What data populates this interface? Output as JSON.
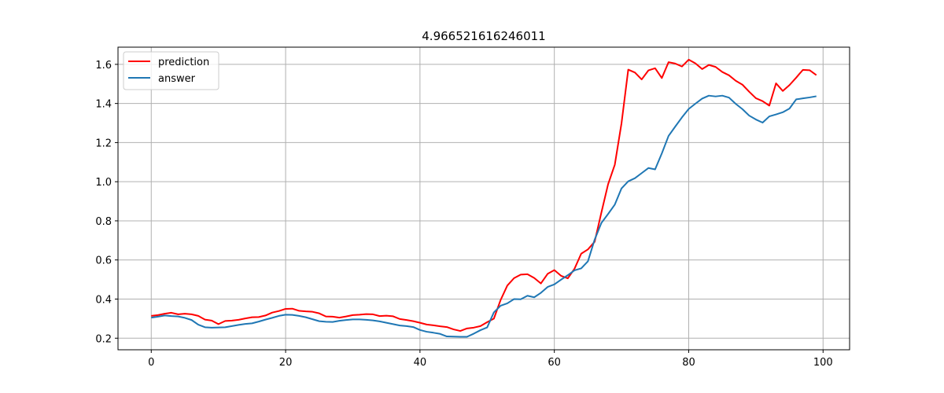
{
  "chart_data": {
    "type": "line",
    "title": "4.966521616246011",
    "xlabel": "",
    "ylabel": "",
    "xlim": [
      -4.95,
      103.95
    ],
    "ylim": [
      0.1408,
      1.6879
    ],
    "xticks": [
      0,
      20,
      40,
      60,
      80,
      100
    ],
    "yticks": [
      0.2,
      0.4,
      0.6,
      0.8,
      1.0,
      1.2,
      1.4,
      1.6
    ],
    "xtick_labels": [
      "0",
      "20",
      "40",
      "60",
      "80",
      "100"
    ],
    "ytick_labels": [
      "0.2",
      "0.4",
      "0.6",
      "0.8",
      "1.0",
      "1.2",
      "1.4",
      "1.6"
    ],
    "grid": true,
    "legend_position": "top-left",
    "x": [
      0,
      1,
      2,
      3,
      4,
      5,
      6,
      7,
      8,
      9,
      10,
      11,
      12,
      13,
      14,
      15,
      16,
      17,
      18,
      19,
      20,
      21,
      22,
      23,
      24,
      25,
      26,
      27,
      28,
      29,
      30,
      31,
      32,
      33,
      34,
      35,
      36,
      37,
      38,
      39,
      40,
      41,
      42,
      43,
      44,
      45,
      46,
      47,
      48,
      49,
      50,
      51,
      52,
      53,
      54,
      55,
      56,
      57,
      58,
      59,
      60,
      61,
      62,
      63,
      64,
      65,
      66,
      67,
      68,
      69,
      70,
      71,
      72,
      73,
      74,
      75,
      76,
      77,
      78,
      79,
      80,
      81,
      82,
      83,
      84,
      85,
      86,
      87,
      88,
      89,
      90,
      91,
      92,
      93,
      94,
      95,
      96,
      97,
      98,
      99
    ],
    "series": [
      {
        "name": "prediction",
        "color": "#ff0000",
        "values": [
          0.314,
          0.318,
          0.325,
          0.33,
          0.322,
          0.325,
          0.322,
          0.314,
          0.295,
          0.29,
          0.272,
          0.288,
          0.29,
          0.294,
          0.301,
          0.307,
          0.308,
          0.316,
          0.331,
          0.339,
          0.35,
          0.351,
          0.34,
          0.337,
          0.335,
          0.327,
          0.311,
          0.31,
          0.305,
          0.311,
          0.318,
          0.32,
          0.323,
          0.322,
          0.313,
          0.315,
          0.312,
          0.298,
          0.293,
          0.287,
          0.279,
          0.27,
          0.266,
          0.261,
          0.257,
          0.245,
          0.237,
          0.25,
          0.254,
          0.262,
          0.282,
          0.3,
          0.395,
          0.469,
          0.507,
          0.525,
          0.527,
          0.508,
          0.48,
          0.529,
          0.548,
          0.519,
          0.506,
          0.555,
          0.632,
          0.654,
          0.693,
          0.842,
          0.987,
          1.087,
          1.299,
          1.573,
          1.558,
          1.523,
          1.569,
          1.58,
          1.53,
          1.611,
          1.604,
          1.589,
          1.624,
          1.605,
          1.576,
          1.597,
          1.587,
          1.561,
          1.544,
          1.516,
          1.496,
          1.46,
          1.427,
          1.412,
          1.389,
          1.503,
          1.464,
          1.494,
          1.532,
          1.572,
          1.57,
          1.545
        ]
      },
      {
        "name": "answer",
        "color": "#1f77b4",
        "values": [
          0.305,
          0.31,
          0.316,
          0.313,
          0.311,
          0.304,
          0.293,
          0.269,
          0.256,
          0.254,
          0.255,
          0.256,
          0.262,
          0.268,
          0.273,
          0.276,
          0.285,
          0.295,
          0.304,
          0.314,
          0.32,
          0.319,
          0.314,
          0.307,
          0.297,
          0.287,
          0.284,
          0.283,
          0.289,
          0.293,
          0.296,
          0.296,
          0.294,
          0.291,
          0.286,
          0.279,
          0.272,
          0.265,
          0.262,
          0.257,
          0.242,
          0.233,
          0.228,
          0.222,
          0.209,
          0.208,
          0.207,
          0.207,
          0.223,
          0.241,
          0.255,
          0.332,
          0.366,
          0.378,
          0.4,
          0.399,
          0.417,
          0.409,
          0.432,
          0.462,
          0.475,
          0.499,
          0.522,
          0.547,
          0.557,
          0.593,
          0.704,
          0.789,
          0.835,
          0.883,
          0.966,
          1.002,
          1.018,
          1.044,
          1.07,
          1.063,
          1.145,
          1.234,
          1.282,
          1.329,
          1.372,
          1.399,
          1.425,
          1.44,
          1.436,
          1.44,
          1.43,
          1.398,
          1.371,
          1.338,
          1.318,
          1.302,
          1.334,
          1.344,
          1.355,
          1.374,
          1.421,
          1.426,
          1.431,
          1.437
        ]
      }
    ]
  }
}
